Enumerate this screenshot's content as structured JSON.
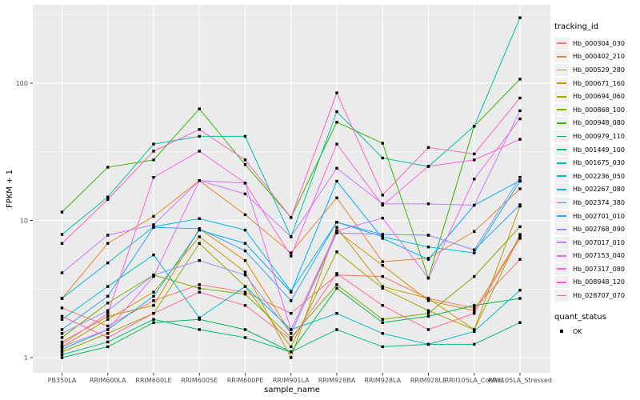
{
  "chart_data": {
    "type": "line",
    "title": "",
    "xlabel": "sample_name",
    "ylabel": "FPKM + 1",
    "y_scale": "log10",
    "y_ticks": [
      "1",
      "10",
      "100"
    ],
    "y_tick_values": [
      1,
      10,
      100
    ],
    "ylim": [
      0.77,
      380
    ],
    "grid": true,
    "panel_bg": "#EBEBEB",
    "grid_color": "#FFFFFF",
    "tick_color": "#333333",
    "axis_text_color": "#4D4D4D",
    "point_color": "#000000",
    "categories": [
      "PB350LA",
      "RRIM600LA",
      "RRIM600LE",
      "RRIM600SE",
      "RRIM600PE",
      "RRIM901LA",
      "RRIM928BA",
      "RRIM928LA",
      "RRIM928LE",
      "RRII105LA_Control",
      "RRII105LA_Stressed"
    ],
    "legend": {
      "title": "tracking_id",
      "position": "right"
    },
    "quant_legend": {
      "title": "quant_status",
      "items": [
        {
          "label": "OK",
          "marker": "black-square"
        }
      ]
    },
    "series": [
      {
        "name": "Hb_000304_030",
        "color": "#F8766D",
        "values": [
          2.3,
          1.7,
          2.6,
          3.4,
          3.0,
          2.1,
          4.0,
          3.9,
          2.7,
          2.3,
          5.2
        ]
      },
      {
        "name": "Hb_000402_210",
        "color": "#EA8331",
        "values": [
          2.7,
          6.8,
          10.7,
          19.5,
          11.0,
          5.8,
          14.6,
          5.0,
          5.3,
          8.3,
          17.0
        ]
      },
      {
        "name": "Hb_000529_280",
        "color": "#D89000",
        "values": [
          1.3,
          2.0,
          2.4,
          8.7,
          5.1,
          1.5,
          8.4,
          4.7,
          2.6,
          2.2,
          7.6
        ]
      },
      {
        "name": "Hb_000671_160",
        "color": "#C09B00",
        "values": [
          1.2,
          1.9,
          3.0,
          7.6,
          4.2,
          1.0,
          8.9,
          3.3,
          2.7,
          1.6,
          12.7
        ]
      },
      {
        "name": "Hb_000694_060",
        "color": "#A3A500",
        "values": [
          1.1,
          1.5,
          2.1,
          6.8,
          3.3,
          1.2,
          5.9,
          3.2,
          2.2,
          1.6,
          7.9
        ]
      },
      {
        "name": "Hb_000868_100",
        "color": "#7CAE00",
        "values": [
          1.4,
          2.5,
          4.0,
          3.2,
          2.9,
          1.4,
          3.4,
          1.9,
          2.1,
          3.9,
          9.0
        ]
      },
      {
        "name": "Hb_000948_080",
        "color": "#39B600",
        "values": [
          11.5,
          24.4,
          27.6,
          65.0,
          25.5,
          10.5,
          52.0,
          36.5,
          3.8,
          48.6,
          107.0
        ]
      },
      {
        "name": "Hb_000979_110",
        "color": "#00BB4E",
        "values": [
          1.0,
          1.2,
          1.8,
          1.9,
          1.6,
          1.1,
          3.2,
          1.8,
          2.0,
          2.4,
          2.7
        ]
      },
      {
        "name": "Hb_001449_100",
        "color": "#00BF7D",
        "values": [
          1.05,
          1.3,
          1.9,
          1.6,
          1.4,
          1.1,
          1.6,
          1.2,
          1.25,
          1.25,
          1.8
        ]
      },
      {
        "name": "Hb_001675_030",
        "color": "#00C1A3",
        "values": [
          7.9,
          14.8,
          36.0,
          41.0,
          41.0,
          7.6,
          62.0,
          28.5,
          24.7,
          48.6,
          300.0
        ]
      },
      {
        "name": "Hb_002236_050",
        "color": "#00BFC4",
        "values": [
          1.9,
          3.3,
          5.6,
          1.95,
          3.3,
          1.6,
          2.1,
          1.5,
          1.25,
          1.55,
          3.1
        ]
      },
      {
        "name": "Hb_002267_080",
        "color": "#00BAE0",
        "values": [
          2.7,
          4.9,
          9.0,
          10.3,
          8.5,
          3.05,
          9.7,
          7.6,
          6.4,
          5.8,
          19.3
        ]
      },
      {
        "name": "Hb_002374_380",
        "color": "#00B0F6",
        "values": [
          1.15,
          1.6,
          2.8,
          8.5,
          6.8,
          3.0,
          19.3,
          7.4,
          5.2,
          12.9,
          19.5
        ]
      },
      {
        "name": "Hb_002701_010",
        "color": "#35A2FF",
        "values": [
          1.6,
          2.8,
          8.9,
          8.7,
          6.0,
          2.6,
          9.7,
          7.9,
          7.8,
          6.1,
          13.0
        ]
      },
      {
        "name": "Hb_002768_090",
        "color": "#9590FF",
        "values": [
          1.5,
          2.2,
          4.0,
          5.1,
          4.0,
          1.5,
          8.1,
          7.9,
          7.8,
          6.1,
          20.6
        ]
      },
      {
        "name": "Hb_007017_010",
        "color": "#C77CFF",
        "values": [
          4.15,
          7.8,
          9.3,
          19.5,
          15.6,
          7.6,
          24.0,
          13.2,
          13.2,
          12.9,
          63.0
        ]
      },
      {
        "name": "Hb_007153_040",
        "color": "#E76BF3",
        "values": [
          1.2,
          1.6,
          3.9,
          19.5,
          18.7,
          1.6,
          8.4,
          10.4,
          3.8,
          20.0,
          55.0
        ]
      },
      {
        "name": "Hb_007317_080",
        "color": "#FA62DB",
        "values": [
          1.25,
          2.1,
          20.6,
          32.0,
          18.7,
          5.5,
          36.0,
          12.9,
          24.8,
          27.6,
          39.0
        ]
      },
      {
        "name": "Hb_008948_120",
        "color": "#FF62BC",
        "values": [
          6.8,
          14.2,
          32.0,
          46.0,
          27.6,
          10.5,
          85.0,
          15.3,
          34.0,
          30.5,
          78.0
        ]
      },
      {
        "name": "Hb_028707_070",
        "color": "#FF6A98",
        "values": [
          2.0,
          1.4,
          2.1,
          3.0,
          2.4,
          1.35,
          4.1,
          2.4,
          1.6,
          2.1,
          7.4
        ]
      }
    ]
  }
}
